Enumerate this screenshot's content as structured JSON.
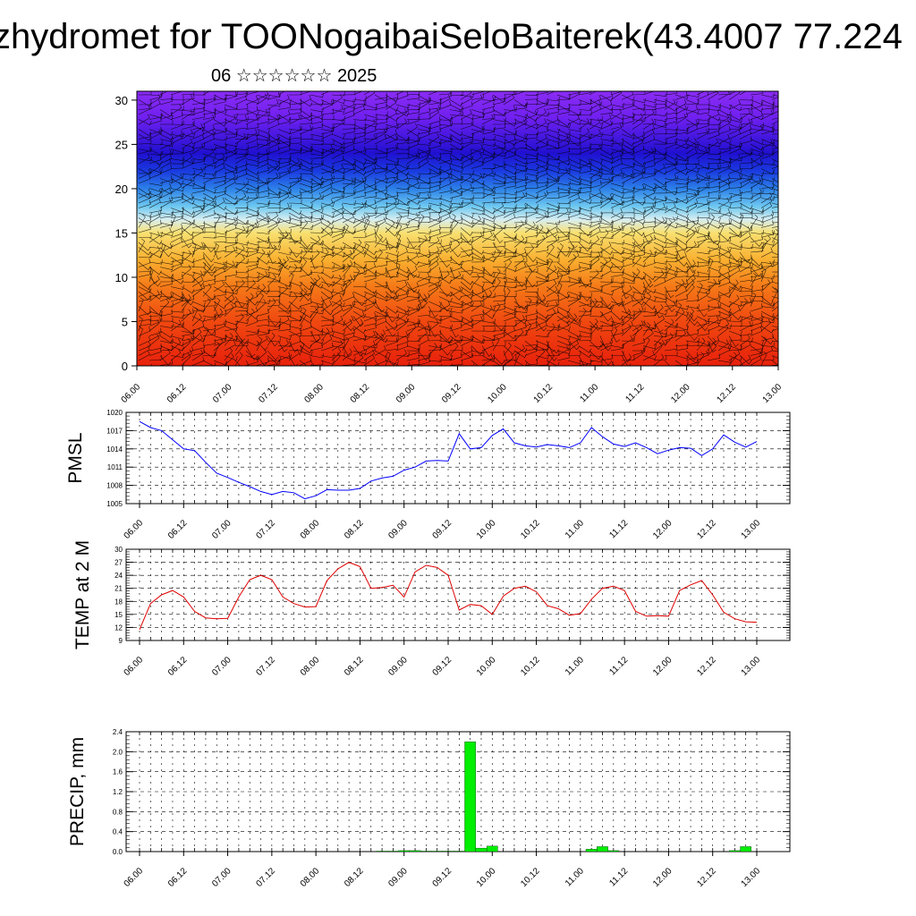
{
  "header": {
    "title": "zhydromet for TOONogaibaiSeloBaiterek(43.4007 77.224",
    "subtitle": "06 ☆☆☆☆☆☆ 2025"
  },
  "colors": {
    "pmsl_line": "#0000ff",
    "temp_line": "#e00000",
    "precip_bar": "#00ee00",
    "grid": "#000000"
  },
  "time_labels": [
    "06.00",
    "06.12",
    "07.00",
    "07.12",
    "08.00",
    "08.12",
    "09.00",
    "09.12",
    "10.00",
    "10.12",
    "11.00",
    "11.12",
    "12.00",
    "12.12",
    "13.00"
  ],
  "chart_data": [
    {
      "type": "heatmap",
      "title": "",
      "ylim": [
        0,
        31
      ],
      "y_ticks": [
        0,
        5,
        10,
        15,
        20,
        25,
        30
      ],
      "x": [
        "06.00",
        "06.12",
        "07.00",
        "07.12",
        "08.00",
        "08.12",
        "09.00",
        "09.12",
        "10.00",
        "10.12",
        "11.00",
        "11.12",
        "12.00",
        "12.12",
        "13.00"
      ],
      "color_bands": [
        {
          "level": 0,
          "color": "#e8200c"
        },
        {
          "level": 5,
          "color": "#f04810"
        },
        {
          "level": 9,
          "color": "#f57a18"
        },
        {
          "level": 12,
          "color": "#f9b030"
        },
        {
          "level": 15,
          "color": "#f8e070"
        },
        {
          "level": 16.5,
          "color": "#d8eef0"
        },
        {
          "level": 18,
          "color": "#6ec8f0"
        },
        {
          "level": 20,
          "color": "#2c80e8"
        },
        {
          "level": 22,
          "color": "#1a3ae0"
        },
        {
          "level": 24,
          "color": "#2010d0"
        },
        {
          "level": 26,
          "color": "#4818e0"
        },
        {
          "level": 28,
          "color": "#7020f0"
        },
        {
          "level": 31,
          "color": "#8a2cf4"
        }
      ],
      "overlay": "wind barbs"
    },
    {
      "type": "line",
      "ylabel": "PMSL",
      "ylim": [
        1005,
        1020
      ],
      "y_ticks": [
        1005,
        1008,
        1011,
        1014,
        1017,
        1020
      ],
      "x_hours": [
        0,
        3,
        6,
        9,
        12,
        15,
        18,
        21,
        24,
        27,
        30,
        33,
        36,
        39,
        42,
        45,
        48,
        51,
        54,
        57,
        60,
        63,
        66,
        69,
        72,
        75,
        78,
        81,
        84,
        87,
        90,
        93,
        96,
        99,
        102,
        105,
        108,
        111,
        114,
        117,
        120,
        123,
        126,
        129,
        132,
        135,
        138,
        141,
        144,
        147,
        150,
        153,
        156,
        159,
        162,
        165,
        168
      ],
      "series": [
        {
          "values": [
            1018.5,
            1017.5,
            1017,
            1015.5,
            1014,
            1013.7,
            1011.8,
            1010,
            1009.3,
            1008.5,
            1007.8,
            1007,
            1006.5,
            1007,
            1006.8,
            1005.8,
            1006.3,
            1007.3,
            1007.2,
            1007.2,
            1007.5,
            1008.7,
            1009.2,
            1009.5,
            1010.5,
            1011,
            1012,
            1012.1,
            1012,
            1016.5,
            1014,
            1014.2,
            1016.2,
            1017.3,
            1015,
            1014.5,
            1014.3,
            1014.7,
            1014.5,
            1014.2,
            1015,
            1017.5,
            1016,
            1014.8,
            1014.4,
            1015,
            1014.2,
            1013.2,
            1013.8,
            1014.2,
            1014.1,
            1012.9,
            1014,
            1016.3,
            1015.1,
            1014.3,
            1015.2
          ]
        }
      ]
    },
    {
      "type": "line",
      "ylabel": "TEMP at 2 M",
      "ylim": [
        9,
        30
      ],
      "y_ticks": [
        9,
        12,
        15,
        18,
        21,
        24,
        27,
        30
      ],
      "x_hours": [
        0,
        3,
        6,
        9,
        12,
        15,
        18,
        21,
        24,
        27,
        30,
        33,
        36,
        39,
        42,
        45,
        48,
        51,
        54,
        57,
        60,
        63,
        66,
        69,
        72,
        75,
        78,
        81,
        84,
        87,
        90,
        93,
        96,
        99,
        102,
        105,
        108,
        111,
        114,
        117,
        120,
        123,
        126,
        129,
        132,
        135,
        138,
        141,
        144,
        147,
        150,
        153,
        156,
        159,
        162,
        165,
        168
      ],
      "series": [
        {
          "values": [
            11.5,
            17.5,
            19.5,
            20.5,
            19,
            15.7,
            14.2,
            14,
            14.1,
            19,
            23,
            24,
            23,
            19,
            17.5,
            16.7,
            16.8,
            22.8,
            25.5,
            27,
            26,
            21,
            21.2,
            21.7,
            19,
            24.8,
            26.3,
            25.8,
            24,
            16,
            17.3,
            17,
            15,
            19.2,
            21,
            21.5,
            20.2,
            17,
            16.3,
            14.8,
            15.2,
            18.5,
            21,
            21.5,
            20.5,
            15.7,
            14.6,
            14.7,
            14.6,
            20.5,
            21.8,
            22.8,
            19.5,
            15.5,
            14,
            13.3,
            13.2
          ]
        }
      ]
    },
    {
      "type": "bar",
      "ylabel": "PRECIP, mm",
      "ylim": [
        0,
        2.4
      ],
      "y_ticks": [
        "0.0",
        "0.4",
        "0.8",
        "1.2",
        "1.6",
        "2.0",
        "2.4"
      ],
      "x_hours": [
        66,
        69,
        72,
        75,
        78,
        81,
        84,
        87,
        90,
        93,
        96,
        123,
        126,
        129,
        162,
        165
      ],
      "values": [
        0.01,
        0.01,
        0.02,
        0.02,
        0.01,
        0.01,
        0.01,
        0.01,
        2.2,
        0.07,
        0.11,
        0.05,
        0.1,
        0.02,
        0.02,
        0.1
      ]
    }
  ]
}
